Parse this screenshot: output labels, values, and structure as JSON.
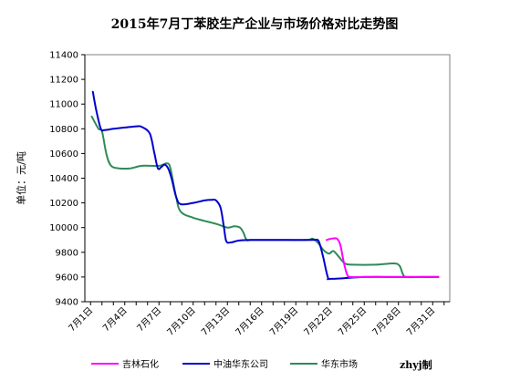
{
  "chart_data": {
    "type": "line",
    "title": "2015年7月丁苯胶生产企业与市场价格对比走势图",
    "ylabel": "单位：元/吨",
    "xlabel": "",
    "ylim": [
      9400,
      11400
    ],
    "yticks": [
      9400,
      9600,
      9800,
      10000,
      10200,
      10400,
      10600,
      10800,
      11000,
      11200,
      11400
    ],
    "x_range": [
      1,
      32
    ],
    "xticks": [
      {
        "x": 1,
        "label": "7月1日"
      },
      {
        "x": 4,
        "label": "7月4日"
      },
      {
        "x": 7,
        "label": "7月7日"
      },
      {
        "x": 10,
        "label": "7月10日"
      },
      {
        "x": 13,
        "label": "7月13日"
      },
      {
        "x": 16,
        "label": "7月16日"
      },
      {
        "x": 19,
        "label": "7月19日"
      },
      {
        "x": 22,
        "label": "7月22日"
      },
      {
        "x": 25,
        "label": "7月25日"
      },
      {
        "x": 28,
        "label": "7月28日"
      },
      {
        "x": 31,
        "label": "7月31日"
      }
    ],
    "grid": false,
    "legend_position": "bottom",
    "series": [
      {
        "name": "吉林石化",
        "color": "#ff00ff",
        "points": [
          [
            21.7,
            9900
          ],
          [
            22.1,
            9910
          ],
          [
            22.6,
            9910
          ],
          [
            22.9,
            9860
          ],
          [
            23.2,
            9720
          ],
          [
            23.5,
            9620
          ],
          [
            23.8,
            9600
          ],
          [
            25,
            9600
          ],
          [
            28,
            9600
          ],
          [
            31,
            9600
          ],
          [
            31.5,
            9600
          ]
        ]
      },
      {
        "name": "中油华东公司",
        "color": "#0000cc",
        "points": [
          [
            1.2,
            11100
          ],
          [
            1.5,
            10950
          ],
          [
            1.9,
            10800
          ],
          [
            2.2,
            10790
          ],
          [
            3,
            10800
          ],
          [
            4,
            10810
          ],
          [
            5,
            10820
          ],
          [
            5.5,
            10815
          ],
          [
            6.2,
            10760
          ],
          [
            6.6,
            10600
          ],
          [
            6.9,
            10480
          ],
          [
            7.2,
            10490
          ],
          [
            7.5,
            10510
          ],
          [
            7.8,
            10480
          ],
          [
            8.1,
            10400
          ],
          [
            8.5,
            10250
          ],
          [
            8.9,
            10190
          ],
          [
            10,
            10200
          ],
          [
            11,
            10220
          ],
          [
            11.6,
            10225
          ],
          [
            12,
            10220
          ],
          [
            12.4,
            10160
          ],
          [
            12.7,
            10000
          ],
          [
            12.9,
            9890
          ],
          [
            13.3,
            9880
          ],
          [
            14,
            9895
          ],
          [
            15,
            9900
          ],
          [
            18,
            9900
          ],
          [
            20,
            9900
          ],
          [
            20.6,
            9900
          ],
          [
            21,
            9890
          ],
          [
            21.4,
            9760
          ],
          [
            21.8,
            9600
          ],
          [
            22.1,
            9585
          ],
          [
            25,
            9600
          ],
          [
            28,
            9600
          ],
          [
            31.5,
            9600
          ]
        ]
      },
      {
        "name": "华东市场",
        "color": "#2e8b57",
        "points": [
          [
            1.1,
            10900
          ],
          [
            1.7,
            10800
          ],
          [
            2,
            10780
          ],
          [
            2.4,
            10590
          ],
          [
            2.8,
            10500
          ],
          [
            3.5,
            10480
          ],
          [
            4.5,
            10480
          ],
          [
            5.5,
            10500
          ],
          [
            7,
            10500
          ],
          [
            7.7,
            10520
          ],
          [
            8,
            10480
          ],
          [
            8.5,
            10250
          ],
          [
            8.9,
            10130
          ],
          [
            10,
            10080
          ],
          [
            12,
            10030
          ],
          [
            13,
            10000
          ],
          [
            13.6,
            10010
          ],
          [
            14.1,
            10000
          ],
          [
            14.4,
            9960
          ],
          [
            14.7,
            9900
          ],
          [
            15.2,
            9900
          ],
          [
            18,
            9900
          ],
          [
            20,
            9900
          ],
          [
            20.5,
            9910
          ],
          [
            21,
            9870
          ],
          [
            21.4,
            9820
          ],
          [
            21.9,
            9790
          ],
          [
            22.3,
            9810
          ],
          [
            22.8,
            9760
          ],
          [
            23.3,
            9710
          ],
          [
            24,
            9700
          ],
          [
            26,
            9700
          ],
          [
            27.6,
            9710
          ],
          [
            28.1,
            9690
          ],
          [
            28.4,
            9620
          ],
          [
            28.7,
            9600
          ],
          [
            30,
            9600
          ],
          [
            31.5,
            9600
          ]
        ]
      }
    ],
    "credit": "zhyj制"
  }
}
